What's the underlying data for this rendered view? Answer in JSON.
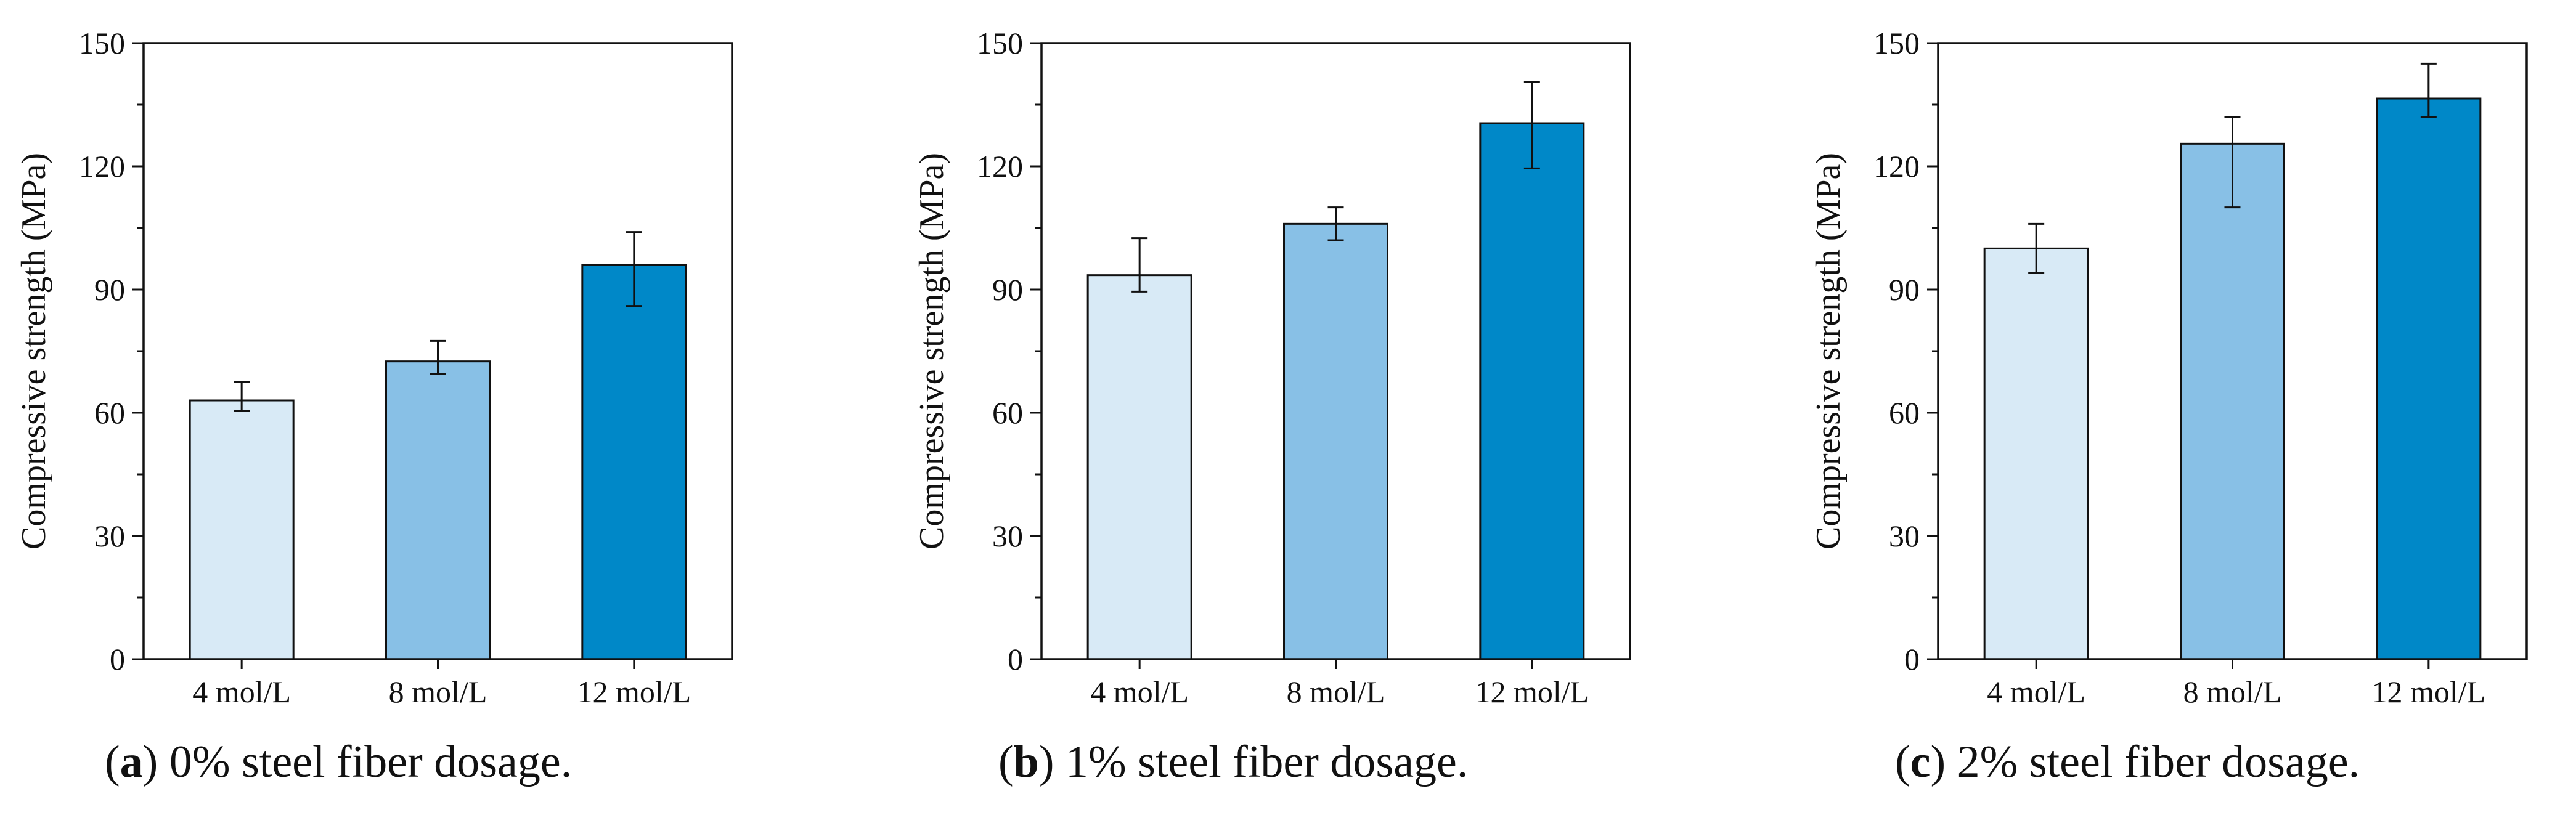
{
  "chart_data": [
    {
      "type": "bar",
      "title": "",
      "caption": {
        "letter": "a",
        "text": "0% steel fiber dosage."
      },
      "categories": [
        "4 mol/L",
        "8 mol/L",
        "12 mol/L"
      ],
      "values": [
        63,
        72.5,
        96
      ],
      "error_low": [
        60.5,
        69.5,
        86
      ],
      "error_high": [
        67.5,
        77.5,
        104
      ],
      "colors": [
        "#d8eaf6",
        "#88c0e6",
        "#0088c8"
      ],
      "xlabel": "",
      "ylabel": "Compressive strength (MPa)",
      "ylim": [
        0,
        150
      ],
      "yticks": [
        0,
        30,
        60,
        90,
        120,
        150
      ],
      "grid": false
    },
    {
      "type": "bar",
      "title": "",
      "caption": {
        "letter": "b",
        "text": "1% steel fiber dosage."
      },
      "categories": [
        "4 mol/L",
        "8 mol/L",
        "12 mol/L"
      ],
      "values": [
        93.5,
        106,
        130.5
      ],
      "error_low": [
        89.5,
        102,
        119.5
      ],
      "error_high": [
        102.5,
        110,
        140.5
      ],
      "colors": [
        "#d8eaf6",
        "#88c0e6",
        "#0088c8"
      ],
      "xlabel": "",
      "ylabel": "Compressive strength (MPa)",
      "ylim": [
        0,
        150
      ],
      "yticks": [
        0,
        30,
        60,
        90,
        120,
        150
      ],
      "grid": false
    },
    {
      "type": "bar",
      "title": "",
      "caption": {
        "letter": "c",
        "text": "2% steel fiber dosage."
      },
      "categories": [
        "4 mol/L",
        "8 mol/L",
        "12 mol/L"
      ],
      "values": [
        100,
        125.5,
        136.5
      ],
      "error_low": [
        94,
        110,
        132
      ],
      "error_high": [
        106,
        132,
        145
      ],
      "colors": [
        "#d8eaf6",
        "#88c0e6",
        "#0088c8"
      ],
      "xlabel": "",
      "ylabel": "Compressive strength (MPa)",
      "ylim": [
        0,
        150
      ],
      "yticks": [
        0,
        30,
        60,
        90,
        120,
        150
      ],
      "grid": false
    }
  ]
}
